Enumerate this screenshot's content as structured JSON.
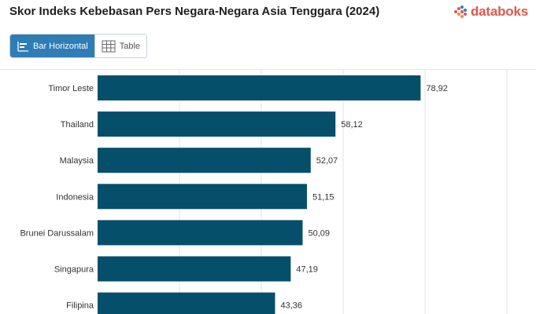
{
  "header": {
    "title": "Skor Indeks Kebebasan Pers Negara-Negara Asia Tenggara (2024)",
    "brand": "databoks",
    "brand_color": "#e0574f"
  },
  "view_toggle": {
    "bar_label": "Bar Horizontal",
    "table_label": "Table",
    "active_color": "#2f7db6"
  },
  "chart_data": {
    "type": "bar",
    "orientation": "horizontal",
    "title": "Skor Indeks Kebebasan Pers Negara-Negara Asia Tenggara (2024)",
    "categories": [
      "Timor Leste",
      "Thailand",
      "Malaysia",
      "Indonesia",
      "Brunei Darussalam",
      "Singapura",
      "Filipina"
    ],
    "values": [
      78.92,
      58.12,
      52.07,
      51.15,
      50.09,
      47.19,
      43.36
    ],
    "value_labels": [
      "78,92",
      "58,12",
      "52,07",
      "51,15",
      "50,09",
      "47,19",
      "43,36"
    ],
    "xlim": [
      0,
      100
    ],
    "grid": true,
    "bar_color": "#064f6b"
  }
}
